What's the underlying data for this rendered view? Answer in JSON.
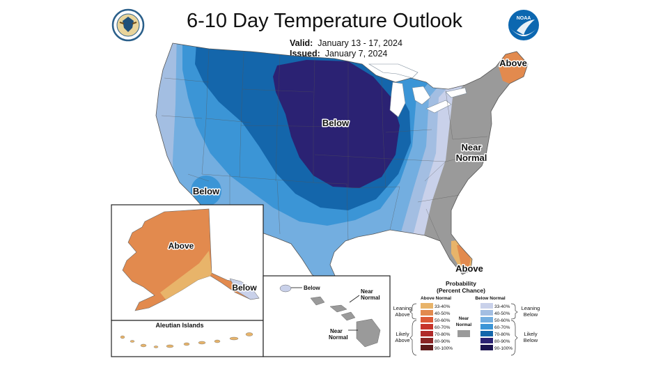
{
  "header": {
    "title": "6-10 Day Temperature Outlook",
    "valid_label": "Valid:",
    "valid_dates": "January 13 - 17, 2024",
    "issued_label": "Issued:",
    "issued_date": "January 7, 2024",
    "left_logo": "department-of-commerce-seal",
    "right_logo": "noaa-logo",
    "right_logo_text": "NOAA"
  },
  "map_labels": {
    "below_central": "Below",
    "below_southwest": "Below",
    "above_maine": "Above",
    "near_normal_line1": "Near",
    "near_normal_line2": "Normal",
    "above_florida": "Above",
    "alaska_above": "Above",
    "alaska_below": "Below",
    "aleutian": "Aleutian Islands",
    "hawaii_below": "Below",
    "hawaii_near_a1": "Near",
    "hawaii_near_a2": "Normal",
    "hawaii_near_b1": "Near",
    "hawaii_near_b2": "Normal"
  },
  "legend": {
    "title1": "Probability",
    "title2": "(Percent Chance)",
    "above_header": "Above Normal",
    "below_header": "Below Normal",
    "near_header1": "Near",
    "near_header2": "Normal",
    "leaning_above1": "Leaning",
    "leaning_above2": "Above",
    "likely_above1": "Likely",
    "likely_above2": "Above",
    "leaning_below1": "Leaning",
    "leaning_below2": "Below",
    "likely_below1": "Likely",
    "likely_below2": "Below",
    "above": [
      {
        "label": "33-40%",
        "color": "#e8b46a"
      },
      {
        "label": "40-50%",
        "color": "#e28a4e"
      },
      {
        "label": "50-60%",
        "color": "#dc5a36"
      },
      {
        "label": "60-70%",
        "color": "#c7352a"
      },
      {
        "label": "70-80%",
        "color": "#b02a2a"
      },
      {
        "label": "80-90%",
        "color": "#8a2424"
      },
      {
        "label": "90-100%",
        "color": "#5e1a1a"
      }
    ],
    "below": [
      {
        "label": "33-40%",
        "color": "#c9d1ea"
      },
      {
        "label": "40-50%",
        "color": "#a3bee2"
      },
      {
        "label": "50-60%",
        "color": "#73aee0"
      },
      {
        "label": "60-70%",
        "color": "#3b95d6"
      },
      {
        "label": "70-80%",
        "color": "#1466ab"
      },
      {
        "label": "80-90%",
        "color": "#2b2273"
      },
      {
        "label": "90-100%",
        "color": "#1b1450"
      }
    ],
    "near_color": "#9a9a9a"
  },
  "colors": {
    "near_normal": "#9a9a9a",
    "above_leaning": "#e8b46a",
    "above_likely": "#e28a4e",
    "below_leaning": "#c9d1ea",
    "below_40": "#a3bee2",
    "below_50": "#73aee0",
    "below_60": "#3b95d6",
    "below_70": "#1466ab",
    "below_80": "#2b2273",
    "great_lakes": "#ffffff"
  }
}
